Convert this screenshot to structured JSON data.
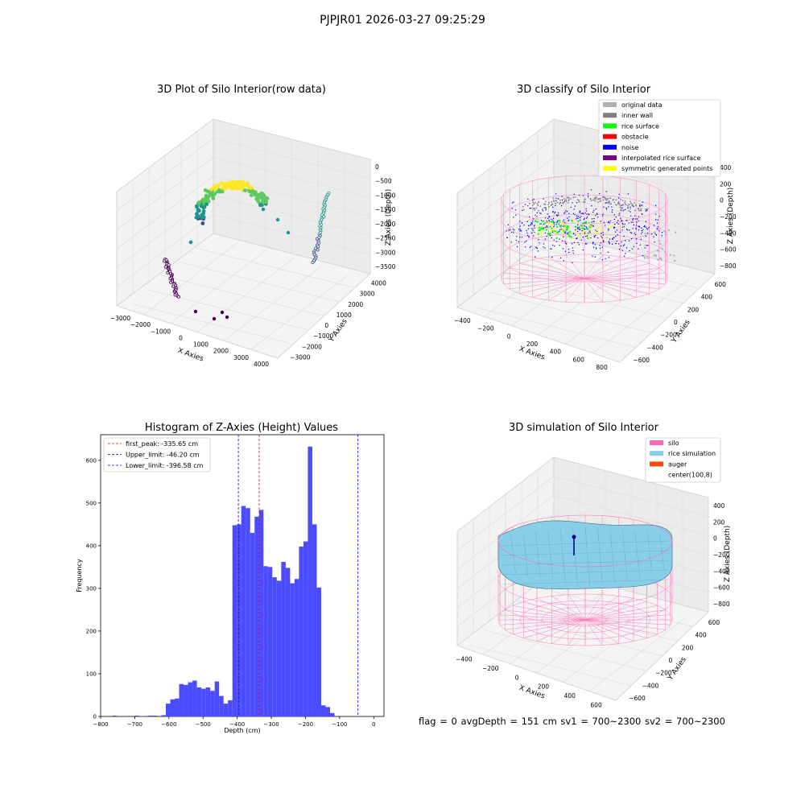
{
  "figure": {
    "suptitle": "PJPJR01 2026-03-27 09:25:29",
    "status_line": "flag = 0     avgDepth = 151 cm  sv1 = 700~2300  sv2 = 700~2300"
  },
  "colors": {
    "hist_bar": "#4b4bff",
    "silo_wire": "#ff69b4",
    "rice_surface": "#87ceeb",
    "noise": "#0000ff",
    "inner_wall": "#808080",
    "rice_points": "#00ff00",
    "obstacle": "#ff0000",
    "interpolated": "#800080",
    "symmetric": "#ffff00",
    "original": "#b0b0b0",
    "auger": "#ff4500"
  },
  "chart_data": [
    {
      "type": "scatter",
      "title": "3D Plot of Silo Interior(row data)",
      "xlabel": "X Axies",
      "ylabel": "Y Axies",
      "zlabel": "Z Axies (Depth)",
      "x_ticks": [
        "−3000",
        "−2000",
        "−1000",
        "0",
        "1000",
        "2000",
        "3000",
        "4000"
      ],
      "y_ticks": [
        "−3000",
        "−2000",
        "−1000",
        "0",
        "1000",
        "2000",
        "3000",
        "4000"
      ],
      "z_ticks": [
        "0",
        "−500",
        "−1000",
        "−1500",
        "−2000",
        "−2500",
        "−3000",
        "−3500"
      ],
      "colormap": "viridis"
    },
    {
      "type": "scatter",
      "title": "3D classify of Silo Interior",
      "xlabel": "X Axies",
      "ylabel": "Y Axies",
      "zlabel": "Z Axies (Depth)",
      "x_ticks": [
        "−400",
        "−200",
        "0",
        "200",
        "400",
        "600",
        "800"
      ],
      "y_ticks": [
        "−600",
        "−400",
        "−200",
        "0",
        "200",
        "400",
        "600"
      ],
      "z_ticks": [
        "400",
        "200",
        "0",
        "−200",
        "−400",
        "−600",
        "−800"
      ],
      "legend": [
        {
          "label": "original data",
          "color": "#b0b0b0"
        },
        {
          "label": "inner wall",
          "color": "#808080"
        },
        {
          "label": "rice surface",
          "color": "#00ff00"
        },
        {
          "label": "obstacle",
          "color": "#ff0000"
        },
        {
          "label": "noise",
          "color": "#0000ff"
        },
        {
          "label": "interpolated rice surface",
          "color": "#800080"
        },
        {
          "label": "symmetric generated points",
          "color": "#ffff00"
        }
      ],
      "legend_position": "top-right"
    },
    {
      "type": "bar",
      "title": "Histogram of Z-Axies (Height) Values",
      "xlabel": "Depth (cm)",
      "ylabel": "Frequency",
      "xlim": [
        -800,
        30
      ],
      "ylim": [
        0,
        660
      ],
      "x_ticks": [
        "−800",
        "−700",
        "−600",
        "−500",
        "−400",
        "−300",
        "−200",
        "−100",
        "0"
      ],
      "y_ticks": [
        "0",
        "100",
        "200",
        "300",
        "400",
        "500",
        "600"
      ],
      "bin_width": 13,
      "bins": [
        [
          -765,
          2
        ],
        [
          -700,
          2
        ],
        [
          -687,
          1
        ],
        [
          -661,
          2
        ],
        [
          -648,
          2
        ],
        [
          -622,
          3
        ],
        [
          -609,
          30
        ],
        [
          -596,
          40
        ],
        [
          -583,
          42
        ],
        [
          -570,
          76
        ],
        [
          -557,
          74
        ],
        [
          -544,
          80
        ],
        [
          -531,
          84
        ],
        [
          -518,
          68
        ],
        [
          -505,
          65
        ],
        [
          -492,
          68
        ],
        [
          -479,
          60
        ],
        [
          -466,
          82
        ],
        [
          -453,
          48
        ],
        [
          -440,
          30
        ],
        [
          -427,
          38
        ],
        [
          -414,
          448
        ],
        [
          -401,
          450
        ],
        [
          -388,
          493
        ],
        [
          -375,
          488
        ],
        [
          -362,
          430
        ],
        [
          -349,
          468
        ],
        [
          -336,
          484
        ],
        [
          -323,
          352
        ],
        [
          -310,
          350
        ],
        [
          -297,
          326
        ],
        [
          -284,
          318
        ],
        [
          -271,
          362
        ],
        [
          -258,
          348
        ],
        [
          -245,
          312
        ],
        [
          -232,
          322
        ],
        [
          -219,
          398
        ],
        [
          -206,
          410
        ],
        [
          -193,
          632
        ],
        [
          -180,
          450
        ],
        [
          -167,
          302
        ],
        [
          -154,
          26
        ],
        [
          -141,
          22
        ],
        [
          -128,
          8
        ]
      ],
      "lines": [
        {
          "label": "first_peak: -335.65 cm",
          "value": -335.65,
          "color": "#ff0000"
        },
        {
          "label": "Upper_limit: -46.20 cm",
          "value": -46.2,
          "color": "#0000ff"
        },
        {
          "label": "Lower_limit: -396.58 cm",
          "value": -396.58,
          "color": "#0000ff"
        }
      ],
      "legend_position": "top-left"
    },
    {
      "type": "area",
      "title": "3D simulation of Silo Interior",
      "xlabel": "X Axies",
      "ylabel": "Y Axies",
      "zlabel": "Z Axies (Depth)",
      "x_ticks": [
        "−400",
        "−200",
        "0",
        "200",
        "400",
        "600"
      ],
      "y_ticks": [
        "−600",
        "−400",
        "−200",
        "0",
        "200",
        "400",
        "600"
      ],
      "z_ticks": [
        "400",
        "200",
        "0",
        "−200",
        "−400",
        "−600",
        "−800"
      ],
      "legend": [
        {
          "label": "silo",
          "color": "#ff69b4"
        },
        {
          "label": "rice simulation",
          "color": "#87ceeb"
        },
        {
          "label": "auger",
          "color": "#ff4500"
        },
        {
          "label": "center(100,8)",
          "color": ""
        }
      ],
      "legend_position": "top-right"
    }
  ]
}
